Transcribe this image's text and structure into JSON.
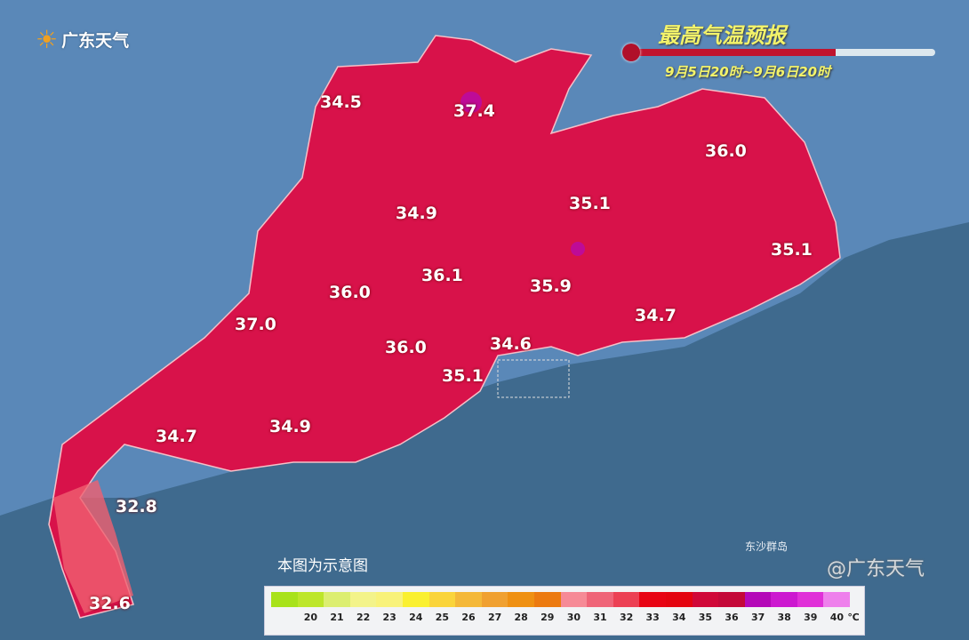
{
  "logo": {
    "text": "广东天气"
  },
  "title": "最高气温预报",
  "period": "9月5日20时~9月6日20时",
  "thermometer": {
    "fill_fraction": 0.67
  },
  "note": "本图为示意图",
  "island_label": "东沙群岛",
  "watermark": "@广东天气",
  "colors": {
    "sea": "#3f6a8e",
    "land_outside": "#5a88b8",
    "land_hot": "#d8124a"
  },
  "temperatures": [
    "34.5",
    "37.4",
    "36.0",
    "34.9",
    "35.1",
    "35.1",
    "36.1",
    "36.0",
    "35.9",
    "37.0",
    "34.7",
    "36.0",
    "34.6",
    "35.1",
    "34.7",
    "34.9",
    "32.8",
    "32.6"
  ],
  "legend": {
    "labels": [
      "20",
      "21",
      "22",
      "23",
      "24",
      "25",
      "26",
      "27",
      "28",
      "29",
      "30",
      "31",
      "32",
      "33",
      "34",
      "35",
      "36",
      "37",
      "38",
      "39",
      "40"
    ],
    "unit": "℃",
    "colors": [
      "#a8e21a",
      "#bde62a",
      "#dcee70",
      "#f3f38a",
      "#f8f27a",
      "#faf030",
      "#fad43a",
      "#f4b838",
      "#f0a030",
      "#ef9012",
      "#ec7a10",
      "#f68a96",
      "#ef6478",
      "#ec4054",
      "#e80414",
      "#e40410",
      "#d00838",
      "#c40838",
      "#b408b8",
      "#cc18d0",
      "#e030d8",
      "#ee80ec"
    ]
  }
}
